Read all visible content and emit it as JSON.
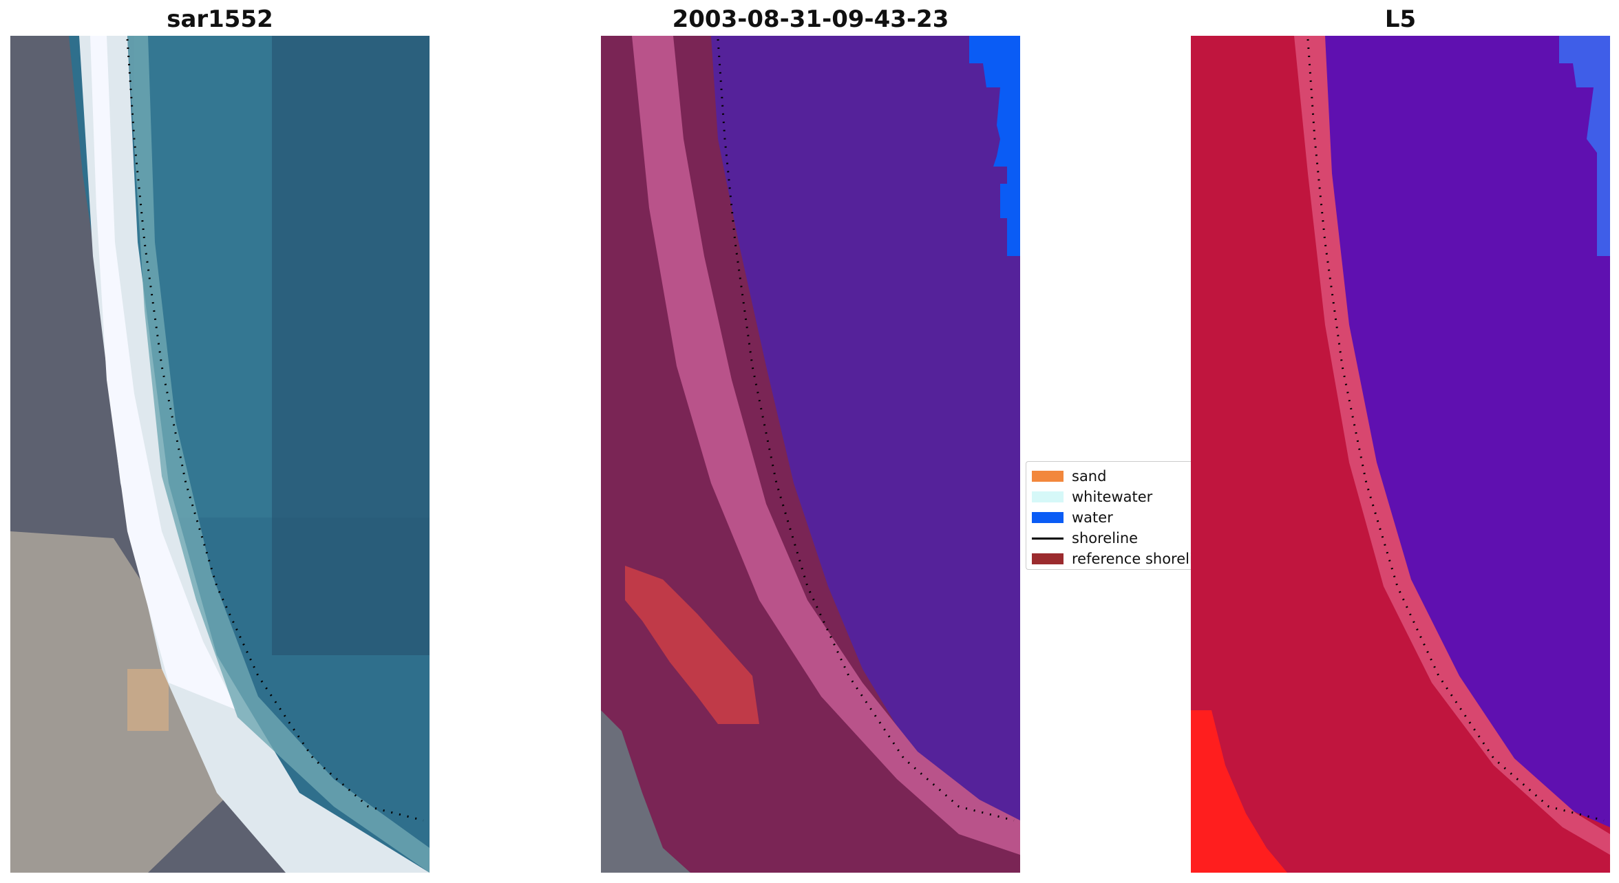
{
  "panels": [
    {
      "title": "sar1552"
    },
    {
      "title": "2003-08-31-09-43-23"
    },
    {
      "title": "L5"
    }
  ],
  "legend": {
    "items": [
      {
        "label": "sand",
        "color": "#f2873c",
        "kind": "patch"
      },
      {
        "label": "whitewater",
        "color": "#d6f8f8",
        "kind": "patch"
      },
      {
        "label": "water",
        "color": "#0a5cf5",
        "kind": "patch"
      },
      {
        "label": "shoreline",
        "color": "#000000",
        "kind": "line"
      },
      {
        "label": "reference shoreline",
        "color": "#9b2b2e",
        "kind": "patch"
      }
    ]
  },
  "colors": {
    "rgb_water": "#2f6f8c",
    "rgb_beach": "#dfe8ee",
    "rgb_land": "#5d6170",
    "class_water_overlay": "#55229a",
    "class_pure_water": "#0a5cf5",
    "class_land": "#7a2555",
    "class_beach": "#b9538a",
    "class_reference": "#c03a48",
    "index_land": "#c0153e",
    "index_water": "#5f10b0",
    "index_beach": "#d8476f"
  }
}
